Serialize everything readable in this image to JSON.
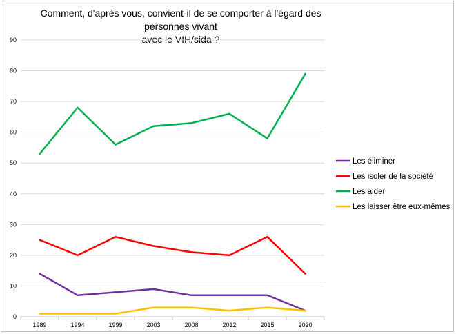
{
  "chart_data": {
    "type": "line",
    "title": "Comment, d'après vous, convient-il de se comporter à l'égard des personnes vivant\navec le VIH/sida ?",
    "xlabel": "",
    "ylabel": "",
    "categories": [
      "1989",
      "1994",
      "1999",
      "2003",
      "2008",
      "2012",
      "2015",
      "2020"
    ],
    "ylim": [
      0,
      90
    ],
    "yticks": [
      0,
      10,
      20,
      30,
      40,
      50,
      60,
      70,
      80,
      90
    ],
    "grid": "horizontal",
    "legend_position": "right",
    "series": [
      {
        "name": "Les éliminer",
        "color": "#7030a0",
        "values": [
          14,
          7,
          8,
          9,
          7,
          7,
          7,
          2
        ]
      },
      {
        "name": "Les isoler de la société",
        "color": "#ff0000",
        "values": [
          25,
          20,
          26,
          23,
          21,
          20,
          26,
          14
        ]
      },
      {
        "name": "Les aider",
        "color": "#00b050",
        "values": [
          53,
          68,
          56,
          62,
          63,
          66,
          58,
          79
        ]
      },
      {
        "name": "Les laisser être eux-mêmes",
        "color": "#ffc000",
        "values": [
          1,
          1,
          1,
          3,
          3,
          2,
          3,
          2
        ]
      }
    ]
  }
}
